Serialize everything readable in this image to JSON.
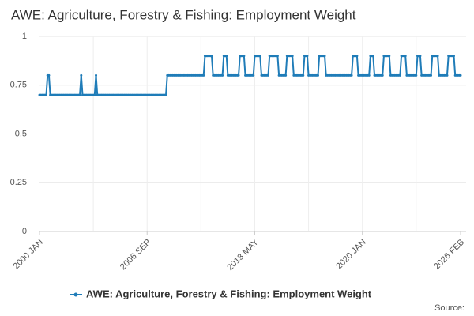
{
  "chart_data": {
    "type": "line",
    "title": "AWE: Agriculture, Forestry & Fishing: Employment Weight",
    "source": "Source:",
    "categories": [
      "2000 JAN",
      null,
      null,
      null,
      null,
      null,
      null,
      null,
      null,
      null,
      null,
      null,
      null,
      null,
      null,
      null,
      null,
      null,
      null,
      null,
      null,
      null,
      null,
      null,
      null,
      null,
      null,
      null,
      null,
      null,
      null,
      null,
      null,
      null,
      null,
      null,
      null,
      null,
      null,
      null,
      null,
      null,
      null,
      null,
      null,
      null,
      null,
      null,
      null,
      null,
      null,
      null,
      null,
      null,
      null,
      null,
      null,
      null,
      null,
      null,
      null,
      null,
      null,
      null,
      null,
      null,
      null,
      null,
      null,
      null,
      null,
      null,
      null,
      null,
      null,
      null,
      null,
      null,
      null,
      null,
      "2006 SEP",
      null,
      null,
      null,
      null,
      null,
      null,
      null,
      null,
      null,
      null,
      null,
      null,
      null,
      null,
      null,
      null,
      null,
      null,
      null,
      null,
      null,
      null,
      null,
      null,
      null,
      null,
      null,
      null,
      null,
      null,
      null,
      null,
      null,
      null,
      null,
      null,
      null,
      null,
      null,
      null,
      null,
      null,
      null,
      null,
      null,
      null,
      null,
      null,
      null,
      null,
      null,
      null,
      null,
      null,
      null,
      null,
      null,
      null,
      null,
      null,
      null,
      null,
      null,
      null,
      null,
      null,
      null,
      null,
      null,
      null,
      null,
      null,
      null,
      null,
      null,
      null,
      null,
      null,
      null,
      "2013 MAY",
      null,
      null,
      null,
      null,
      null,
      null,
      null,
      null,
      null,
      null,
      null,
      null,
      null,
      null,
      null,
      null,
      null,
      null,
      null,
      null,
      null,
      null,
      null,
      null,
      null,
      null,
      null,
      null,
      null,
      null,
      null,
      null,
      null,
      null,
      null,
      null,
      null,
      null,
      null,
      null,
      null,
      null,
      null,
      null,
      null,
      null,
      null,
      null,
      null,
      null,
      null,
      null,
      null,
      null,
      null,
      null,
      null,
      null,
      null,
      null,
      null,
      null,
      null,
      null,
      null,
      null,
      null,
      null,
      null,
      null,
      null,
      null,
      null,
      null,
      null,
      null,
      null,
      null,
      null,
      "2020 JAN",
      null,
      null,
      null,
      null,
      null,
      null,
      null,
      null,
      null,
      null,
      null,
      null,
      null,
      null,
      null,
      null,
      null,
      null,
      null,
      null,
      null,
      null,
      null,
      null,
      null,
      null,
      null,
      null,
      null,
      null,
      null,
      null,
      null,
      null,
      null,
      null,
      null,
      null,
      null,
      null,
      null,
      null,
      null,
      null,
      null,
      null,
      null,
      null,
      null,
      null,
      null,
      null,
      null,
      null,
      null,
      null,
      null,
      null,
      null,
      null,
      null,
      null,
      null,
      null,
      null,
      null,
      null,
      null,
      null,
      null,
      null,
      null,
      "2026 FEB"
    ],
    "series": [
      {
        "name": "AWE: Agriculture, Forestry & Fishing: Employment Weight",
        "color": "#1f7cb8",
        "values": [
          0.7,
          0.7,
          0.7,
          0.7,
          0.7,
          0.7,
          0.8,
          0.8,
          0.7,
          0.7,
          0.7,
          0.7,
          0.7,
          0.7,
          0.7,
          0.7,
          0.7,
          0.7,
          0.7,
          0.7,
          0.7,
          0.7,
          0.7,
          0.7,
          0.7,
          0.7,
          0.7,
          0.7,
          0.7,
          0.7,
          0.7,
          0.8,
          0.7,
          0.7,
          0.7,
          0.7,
          0.7,
          0.7,
          0.7,
          0.7,
          0.7,
          0.7,
          0.8,
          0.7,
          0.7,
          0.7,
          0.7,
          0.7,
          0.7,
          0.7,
          0.7,
          0.7,
          0.7,
          0.7,
          0.7,
          0.7,
          0.7,
          0.7,
          0.7,
          0.7,
          0.7,
          0.7,
          0.7,
          0.7,
          0.7,
          0.7,
          0.7,
          0.7,
          0.7,
          0.7,
          0.7,
          0.7,
          0.7,
          0.7,
          0.7,
          0.7,
          0.7,
          0.7,
          0.7,
          0.7,
          0.7,
          0.7,
          0.7,
          0.7,
          0.7,
          0.7,
          0.7,
          0.7,
          0.7,
          0.7,
          0.7,
          0.7,
          0.7,
          0.7,
          0.7,
          0.8,
          0.8,
          0.8,
          0.8,
          0.8,
          0.8,
          0.8,
          0.8,
          0.8,
          0.8,
          0.8,
          0.8,
          0.8,
          0.8,
          0.8,
          0.8,
          0.8,
          0.8,
          0.8,
          0.8,
          0.8,
          0.8,
          0.8,
          0.8,
          0.8,
          0.8,
          0.8,
          0.8,
          0.9,
          0.9,
          0.9,
          0.9,
          0.9,
          0.9,
          0.8,
          0.8,
          0.8,
          0.8,
          0.8,
          0.8,
          0.8,
          0.8,
          0.9,
          0.9,
          0.9,
          0.8,
          0.8,
          0.8,
          0.8,
          0.8,
          0.8,
          0.8,
          0.8,
          0.8,
          0.9,
          0.9,
          0.9,
          0.9,
          0.8,
          0.8,
          0.8,
          0.8,
          0.8,
          0.8,
          0.8,
          0.9,
          0.9,
          0.9,
          0.9,
          0.9,
          0.8,
          0.8,
          0.8,
          0.8,
          0.8,
          0.8,
          0.9,
          0.9,
          0.9,
          0.9,
          0.9,
          0.9,
          0.9,
          0.8,
          0.8,
          0.8,
          0.8,
          0.8,
          0.8,
          0.9,
          0.9,
          0.9,
          0.9,
          0.9,
          0.8,
          0.8,
          0.8,
          0.8,
          0.8,
          0.8,
          0.8,
          0.8,
          0.9,
          0.9,
          0.9,
          0.8,
          0.8,
          0.8,
          0.8,
          0.8,
          0.8,
          0.8,
          0.8,
          0.9,
          0.9,
          0.9,
          0.9,
          0.9,
          0.8,
          0.8,
          0.8,
          0.8,
          0.8,
          0.8,
          0.8,
          0.8,
          0.8,
          0.8,
          0.8,
          0.8,
          0.8,
          0.8,
          0.8,
          0.8,
          0.8,
          0.8,
          0.8,
          0.8,
          0.9,
          0.9,
          0.9,
          0.9,
          0.8,
          0.8,
          0.8,
          0.8,
          0.8,
          0.8,
          0.8,
          0.8,
          0.8,
          0.9,
          0.9,
          0.9,
          0.8,
          0.8,
          0.8,
          0.8,
          0.8,
          0.8,
          0.8,
          0.9,
          0.9,
          0.9,
          0.9,
          0.9,
          0.8,
          0.8,
          0.8,
          0.8,
          0.8,
          0.8,
          0.8,
          0.8,
          0.9,
          0.9,
          0.9,
          0.9,
          0.8,
          0.8,
          0.8,
          0.8,
          0.8,
          0.8,
          0.8,
          0.8,
          0.9,
          0.9,
          0.9,
          0.8,
          0.8,
          0.8,
          0.8,
          0.8,
          0.8,
          0.8,
          0.8,
          0.9,
          0.9,
          0.9,
          0.9,
          0.9,
          0.8,
          0.8,
          0.8,
          0.8,
          0.8,
          0.8,
          0.8,
          0.9,
          0.9,
          0.9,
          0.9,
          0.9,
          0.8,
          0.8,
          0.8,
          0.8,
          0.8
        ]
      }
    ],
    "ylim": [
      0,
      1
    ],
    "yticks": [
      0,
      0.25,
      0.5,
      0.75,
      1
    ],
    "grid": true
  }
}
